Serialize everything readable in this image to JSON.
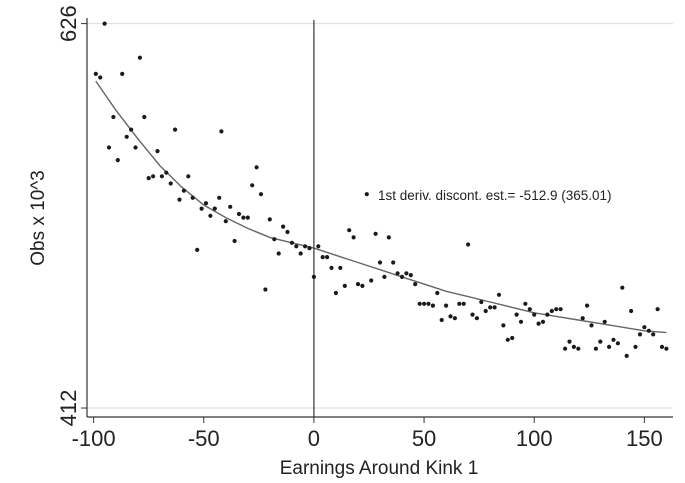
{
  "chart_data": {
    "type": "scatter",
    "xlabel": "Earnings Around Kink 1",
    "ylabel": "Obs x 10^3",
    "xlim": [
      -103,
      163
    ],
    "ylim": [
      407,
      628
    ],
    "x_ticks": [
      "-100",
      "-50",
      "0",
      "50",
      "100",
      "150"
    ],
    "y_ticks": [
      "412",
      "626"
    ],
    "kink_x": 0,
    "grid": "horizontal at y ticks",
    "annotation": "1st deriv. discont. est.= -512.9 (365.01)",
    "colors": {
      "points": "#1a1a1a",
      "fit": "#666666",
      "kink_line": "#333333",
      "grid": "#dddddd"
    },
    "points": [
      {
        "x": -99,
        "y": 598
      },
      {
        "x": -97,
        "y": 596
      },
      {
        "x": -95,
        "y": 626
      },
      {
        "x": -93,
        "y": 557
      },
      {
        "x": -91,
        "y": 574
      },
      {
        "x": -89,
        "y": 550
      },
      {
        "x": -87,
        "y": 598
      },
      {
        "x": -85,
        "y": 563
      },
      {
        "x": -83,
        "y": 567
      },
      {
        "x": -81,
        "y": 557
      },
      {
        "x": -79,
        "y": 607
      },
      {
        "x": -77,
        "y": 574
      },
      {
        "x": -75,
        "y": 540
      },
      {
        "x": -73,
        "y": 541
      },
      {
        "x": -71,
        "y": 555
      },
      {
        "x": -69,
        "y": 541
      },
      {
        "x": -67,
        "y": 543
      },
      {
        "x": -65,
        "y": 537
      },
      {
        "x": -63,
        "y": 567
      },
      {
        "x": -61,
        "y": 528
      },
      {
        "x": -59,
        "y": 533
      },
      {
        "x": -57,
        "y": 541
      },
      {
        "x": -55,
        "y": 529
      },
      {
        "x": -53,
        "y": 500
      },
      {
        "x": -51,
        "y": 523
      },
      {
        "x": -49,
        "y": 526
      },
      {
        "x": -47,
        "y": 519
      },
      {
        "x": -45,
        "y": 523
      },
      {
        "x": -43,
        "y": 529
      },
      {
        "x": -42,
        "y": 566
      },
      {
        "x": -40,
        "y": 516
      },
      {
        "x": -38,
        "y": 524
      },
      {
        "x": -36,
        "y": 505
      },
      {
        "x": -34,
        "y": 520
      },
      {
        "x": -32,
        "y": 518
      },
      {
        "x": -30,
        "y": 518
      },
      {
        "x": -28,
        "y": 536
      },
      {
        "x": -26,
        "y": 546
      },
      {
        "x": -24,
        "y": 531
      },
      {
        "x": -22,
        "y": 478
      },
      {
        "x": -20,
        "y": 517
      },
      {
        "x": -18,
        "y": 506
      },
      {
        "x": -16,
        "y": 498
      },
      {
        "x": -14,
        "y": 513
      },
      {
        "x": -12,
        "y": 510
      },
      {
        "x": -10,
        "y": 504
      },
      {
        "x": -8,
        "y": 502
      },
      {
        "x": -6,
        "y": 498
      },
      {
        "x": -4,
        "y": 502
      },
      {
        "x": -2,
        "y": 501
      },
      {
        "x": 0,
        "y": 485
      },
      {
        "x": 2,
        "y": 502
      },
      {
        "x": 4,
        "y": 496
      },
      {
        "x": 6,
        "y": 496
      },
      {
        "x": 8,
        "y": 490
      },
      {
        "x": 10,
        "y": 476
      },
      {
        "x": 12,
        "y": 490
      },
      {
        "x": 14,
        "y": 480
      },
      {
        "x": 16,
        "y": 511
      },
      {
        "x": 18,
        "y": 507
      },
      {
        "x": 20,
        "y": 481
      },
      {
        "x": 22,
        "y": 480
      },
      {
        "x": 24,
        "y": 531
      },
      {
        "x": 26,
        "y": 483
      },
      {
        "x": 28,
        "y": 509
      },
      {
        "x": 30,
        "y": 493
      },
      {
        "x": 32,
        "y": 485
      },
      {
        "x": 34,
        "y": 507
      },
      {
        "x": 36,
        "y": 493
      },
      {
        "x": 38,
        "y": 487
      },
      {
        "x": 40,
        "y": 485
      },
      {
        "x": 42,
        "y": 487
      },
      {
        "x": 44,
        "y": 486
      },
      {
        "x": 46,
        "y": 481
      },
      {
        "x": 48,
        "y": 470
      },
      {
        "x": 50,
        "y": 470
      },
      {
        "x": 52,
        "y": 470
      },
      {
        "x": 54,
        "y": 469
      },
      {
        "x": 56,
        "y": 476
      },
      {
        "x": 58,
        "y": 461
      },
      {
        "x": 60,
        "y": 469
      },
      {
        "x": 62,
        "y": 463
      },
      {
        "x": 64,
        "y": 462
      },
      {
        "x": 66,
        "y": 470
      },
      {
        "x": 68,
        "y": 470
      },
      {
        "x": 70,
        "y": 503
      },
      {
        "x": 72,
        "y": 464
      },
      {
        "x": 74,
        "y": 462
      },
      {
        "x": 76,
        "y": 471
      },
      {
        "x": 78,
        "y": 466
      },
      {
        "x": 80,
        "y": 468
      },
      {
        "x": 82,
        "y": 468
      },
      {
        "x": 84,
        "y": 475
      },
      {
        "x": 86,
        "y": 458
      },
      {
        "x": 88,
        "y": 450
      },
      {
        "x": 90,
        "y": 451
      },
      {
        "x": 92,
        "y": 464
      },
      {
        "x": 94,
        "y": 460
      },
      {
        "x": 96,
        "y": 470
      },
      {
        "x": 98,
        "y": 467
      },
      {
        "x": 100,
        "y": 464
      },
      {
        "x": 102,
        "y": 459
      },
      {
        "x": 104,
        "y": 460
      },
      {
        "x": 106,
        "y": 464
      },
      {
        "x": 108,
        "y": 466
      },
      {
        "x": 110,
        "y": 467
      },
      {
        "x": 112,
        "y": 467
      },
      {
        "x": 114,
        "y": 445
      },
      {
        "x": 116,
        "y": 449
      },
      {
        "x": 118,
        "y": 446
      },
      {
        "x": 120,
        "y": 445
      },
      {
        "x": 122,
        "y": 462
      },
      {
        "x": 124,
        "y": 469
      },
      {
        "x": 126,
        "y": 458
      },
      {
        "x": 128,
        "y": 445
      },
      {
        "x": 130,
        "y": 449
      },
      {
        "x": 132,
        "y": 460
      },
      {
        "x": 134,
        "y": 446
      },
      {
        "x": 136,
        "y": 450
      },
      {
        "x": 138,
        "y": 448
      },
      {
        "x": 140,
        "y": 479
      },
      {
        "x": 142,
        "y": 441
      },
      {
        "x": 144,
        "y": 466
      },
      {
        "x": 146,
        "y": 446
      },
      {
        "x": 148,
        "y": 453
      },
      {
        "x": 150,
        "y": 457
      },
      {
        "x": 152,
        "y": 455
      },
      {
        "x": 154,
        "y": 453
      },
      {
        "x": 156,
        "y": 467
      },
      {
        "x": 158,
        "y": 446
      },
      {
        "x": 160,
        "y": 445
      }
    ],
    "fit_curve": {
      "x": [
        -99,
        -90,
        -80,
        -70,
        -60,
        -50,
        -40,
        -30,
        -20,
        -10,
        0,
        10,
        20,
        30,
        40,
        50,
        60,
        70,
        80,
        90,
        100,
        110,
        120,
        130,
        140,
        150,
        160
      ],
      "y": [
        594,
        578,
        562,
        547,
        535,
        525,
        518,
        512,
        507,
        504,
        501,
        497,
        493,
        489,
        485,
        481,
        477,
        474,
        471,
        468,
        465,
        463,
        461,
        459,
        457,
        455,
        454
      ]
    }
  }
}
